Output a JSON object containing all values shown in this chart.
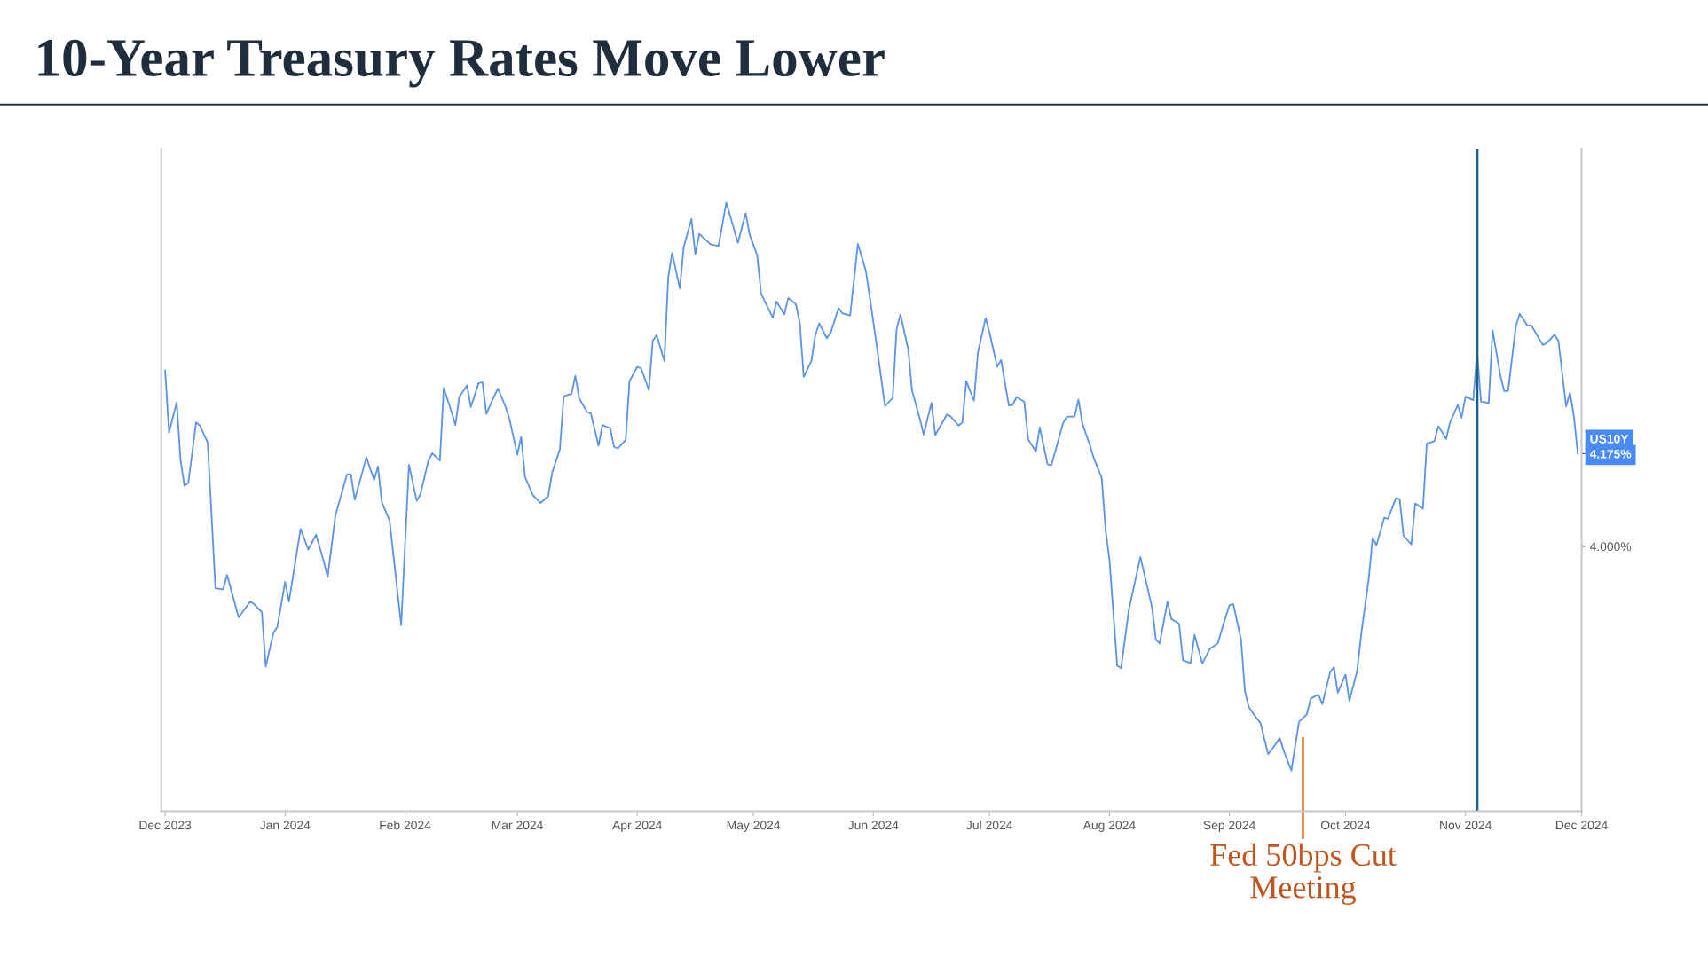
{
  "chart_data": {
    "type": "line",
    "title": "10-Year Treasury Rates Move Lower",
    "x": [
      "2023-12-01",
      "2023-12-02",
      "2023-12-04",
      "2023-12-05",
      "2023-12-06",
      "2023-12-07",
      "2023-12-09",
      "2023-12-10",
      "2023-12-12",
      "2023-12-14",
      "2023-12-16",
      "2023-12-17",
      "2023-12-20",
      "2023-12-23",
      "2023-12-24",
      "2023-12-26",
      "2023-12-27",
      "2023-12-29",
      "2023-12-30",
      "2024-01-01",
      "2024-01-02",
      "2024-01-05",
      "2024-01-07",
      "2024-01-09",
      "2024-01-11",
      "2024-01-12",
      "2024-01-14",
      "2024-01-17",
      "2024-01-18",
      "2024-01-19",
      "2024-01-22",
      "2024-01-24",
      "2024-01-25",
      "2024-01-26",
      "2024-01-28",
      "2024-01-31",
      "2024-02-02",
      "2024-02-04",
      "2024-02-05",
      "2024-02-07",
      "2024-02-08",
      "2024-02-10",
      "2024-02-11",
      "2024-02-13",
      "2024-02-14",
      "2024-02-15",
      "2024-02-17",
      "2024-02-18",
      "2024-02-20",
      "2024-02-21",
      "2024-02-22",
      "2024-02-24",
      "2024-02-25",
      "2024-02-27",
      "2024-02-28",
      "2024-03-01",
      "2024-03-02",
      "2024-03-03",
      "2024-03-05",
      "2024-03-07",
      "2024-03-09",
      "2024-03-10",
      "2024-03-12",
      "2024-03-13",
      "2024-03-15",
      "2024-03-16",
      "2024-03-17",
      "2024-03-19",
      "2024-03-20",
      "2024-03-22",
      "2024-03-23",
      "2024-03-25",
      "2024-03-26",
      "2024-03-27",
      "2024-03-29",
      "2024-03-30",
      "2024-04-01",
      "2024-04-02",
      "2024-04-04",
      "2024-04-05",
      "2024-04-06",
      "2024-04-08",
      "2024-04-09",
      "2024-04-10",
      "2024-04-12",
      "2024-04-13",
      "2024-04-15",
      "2024-04-16",
      "2024-04-17",
      "2024-04-20",
      "2024-04-22",
      "2024-04-24",
      "2024-04-27",
      "2024-04-29",
      "2024-04-30",
      "2024-05-02",
      "2024-05-03",
      "2024-05-04",
      "2024-05-06",
      "2024-05-07",
      "2024-05-09",
      "2024-05-10",
      "2024-05-12",
      "2024-05-13",
      "2024-05-14",
      "2024-05-16",
      "2024-05-17",
      "2024-05-18",
      "2024-05-20",
      "2024-05-21",
      "2024-05-23",
      "2024-05-24",
      "2024-05-26",
      "2024-05-28",
      "2024-05-30",
      "2024-05-31",
      "2024-06-02",
      "2024-06-04",
      "2024-06-06",
      "2024-06-07",
      "2024-06-08",
      "2024-06-10",
      "2024-06-11",
      "2024-06-13",
      "2024-06-14",
      "2024-06-16",
      "2024-06-17",
      "2024-06-20",
      "2024-06-21",
      "2024-06-23",
      "2024-06-24",
      "2024-06-25",
      "2024-06-27",
      "2024-06-28",
      "2024-06-30",
      "2024-07-01",
      "2024-07-03",
      "2024-07-04",
      "2024-07-06",
      "2024-07-07",
      "2024-07-08",
      "2024-07-10",
      "2024-07-11",
      "2024-07-13",
      "2024-07-14",
      "2024-07-16",
      "2024-07-17",
      "2024-07-20",
      "2024-07-21",
      "2024-07-23",
      "2024-07-24",
      "2024-07-25",
      "2024-07-27",
      "2024-07-28",
      "2024-07-30",
      "2024-07-31",
      "2024-08-01",
      "2024-08-03",
      "2024-08-04",
      "2024-08-06",
      "2024-08-09",
      "2024-08-12",
      "2024-08-13",
      "2024-08-14",
      "2024-08-16",
      "2024-08-17",
      "2024-08-19",
      "2024-08-20",
      "2024-08-22",
      "2024-08-23",
      "2024-08-25",
      "2024-08-27",
      "2024-08-29",
      "2024-08-30",
      "2024-09-01",
      "2024-09-02",
      "2024-09-04",
      "2024-09-05",
      "2024-09-06",
      "2024-09-08",
      "2024-09-09",
      "2024-09-11",
      "2024-09-12",
      "2024-09-14",
      "2024-09-15",
      "2024-09-17",
      "2024-09-18",
      "2024-09-19",
      "2024-09-21",
      "2024-09-22",
      "2024-09-24",
      "2024-09-25",
      "2024-09-27",
      "2024-09-28",
      "2024-09-29",
      "2024-10-01",
      "2024-10-02",
      "2024-10-04",
      "2024-10-05",
      "2024-10-07",
      "2024-10-08",
      "2024-10-09",
      "2024-10-11",
      "2024-10-12",
      "2024-10-14",
      "2024-10-15",
      "2024-10-16",
      "2024-10-18",
      "2024-10-19",
      "2024-10-21",
      "2024-10-22",
      "2024-10-24",
      "2024-10-25",
      "2024-10-27",
      "2024-10-28",
      "2024-10-30",
      "2024-10-31",
      "2024-11-01",
      "2024-11-03",
      "2024-11-04",
      "2024-11-05",
      "2024-11-07",
      "2024-11-08",
      "2024-11-10",
      "2024-11-11",
      "2024-11-12",
      "2024-11-14",
      "2024-11-15",
      "2024-11-17",
      "2024-11-18",
      "2024-11-21",
      "2024-11-22",
      "2024-11-24",
      "2024-11-25",
      "2024-11-27",
      "2024-11-28",
      "2024-11-29",
      "2024-11-30"
    ],
    "series": [
      {
        "color": "#5b93e8",
        "values": [
          4.332,
          4.215,
          4.272,
          4.162,
          4.114,
          4.12,
          4.234,
          4.228,
          4.196,
          3.921,
          3.919,
          3.946,
          3.866,
          3.896,
          3.891,
          3.876,
          3.773,
          3.837,
          3.848,
          3.933,
          3.896,
          4.033,
          3.994,
          4.022,
          3.971,
          3.942,
          4.058,
          4.136,
          4.136,
          4.088,
          4.168,
          4.125,
          4.151,
          4.083,
          4.049,
          3.851,
          4.154,
          4.086,
          4.099,
          4.161,
          4.176,
          4.162,
          4.299,
          4.254,
          4.229,
          4.282,
          4.304,
          4.263,
          4.308,
          4.31,
          4.25,
          4.283,
          4.298,
          4.263,
          4.24,
          4.173,
          4.207,
          4.131,
          4.097,
          4.082,
          4.095,
          4.139,
          4.183,
          4.283,
          4.288,
          4.322,
          4.279,
          4.254,
          4.251,
          4.19,
          4.229,
          4.223,
          4.188,
          4.185,
          4.201,
          4.312,
          4.339,
          4.336,
          4.295,
          4.388,
          4.399,
          4.35,
          4.508,
          4.554,
          4.487,
          4.565,
          4.618,
          4.551,
          4.59,
          4.57,
          4.567,
          4.649,
          4.573,
          4.629,
          4.59,
          4.549,
          4.477,
          4.462,
          4.432,
          4.462,
          4.438,
          4.469,
          4.457,
          4.421,
          4.32,
          4.35,
          4.399,
          4.421,
          4.393,
          4.404,
          4.45,
          4.44,
          4.436,
          4.571,
          4.522,
          4.474,
          4.372,
          4.265,
          4.28,
          4.41,
          4.438,
          4.372,
          4.294,
          4.241,
          4.211,
          4.271,
          4.21,
          4.249,
          4.245,
          4.228,
          4.234,
          4.312,
          4.275,
          4.365,
          4.431,
          4.404,
          4.339,
          4.352,
          4.266,
          4.267,
          4.282,
          4.273,
          4.202,
          4.179,
          4.225,
          4.155,
          4.153,
          4.232,
          4.245,
          4.245,
          4.277,
          4.232,
          4.19,
          4.166,
          4.129,
          4.031,
          3.975,
          3.775,
          3.77,
          3.88,
          3.98,
          3.885,
          3.824,
          3.817,
          3.896,
          3.863,
          3.854,
          3.785,
          3.78,
          3.833,
          3.779,
          3.807,
          3.817,
          3.842,
          3.889,
          3.891,
          3.824,
          3.727,
          3.697,
          3.676,
          3.667,
          3.608,
          3.617,
          3.638,
          3.615,
          3.577,
          3.624,
          3.669,
          3.683,
          3.713,
          3.72,
          3.702,
          3.762,
          3.772,
          3.724,
          3.758,
          3.708,
          3.765,
          3.831,
          3.939,
          4.016,
          4.002,
          4.054,
          4.052,
          4.091,
          4.089,
          4.02,
          4.004,
          4.081,
          4.071,
          4.194,
          4.199,
          4.227,
          4.203,
          4.234,
          4.267,
          4.243,
          4.283,
          4.276,
          4.368,
          4.273,
          4.271,
          4.408,
          4.323,
          4.293,
          4.293,
          4.415,
          4.439,
          4.417,
          4.417,
          4.38,
          4.384,
          4.4,
          4.388,
          4.264,
          4.29,
          4.246,
          4.175
        ]
      }
    ],
    "xlim": [
      "2023-11-30",
      "2024-12-01"
    ],
    "xticks": [
      {
        "value": "2023-12-01",
        "label": "Dec 2023"
      },
      {
        "value": "2024-01-01",
        "label": "Jan 2024"
      },
      {
        "value": "2024-02-01",
        "label": "Feb 2024"
      },
      {
        "value": "2024-03-01",
        "label": "Mar 2024"
      },
      {
        "value": "2024-04-01",
        "label": "Apr 2024"
      },
      {
        "value": "2024-05-01",
        "label": "May 2024"
      },
      {
        "value": "2024-06-01",
        "label": "Jun 2024"
      },
      {
        "value": "2024-07-01",
        "label": "Jul 2024"
      },
      {
        "value": "2024-08-01",
        "label": "Aug 2024"
      },
      {
        "value": "2024-09-01",
        "label": "Sep 2024"
      },
      {
        "value": "2024-10-01",
        "label": "Oct 2024"
      },
      {
        "value": "2024-11-01",
        "label": "Nov 2024"
      },
      {
        "value": "2024-12-01",
        "label": "Dec 2024"
      }
    ],
    "ylim": [
      3.5,
      4.75
    ],
    "yticks": [
      {
        "value": 4.0,
        "label": "4.000%"
      },
      {
        "value": 4.175,
        "label": "4.175%"
      }
    ],
    "annotations": [
      "US10Y"
    ],
    "ref_lines": [
      {
        "axis": "x",
        "value": "2024-11-04",
        "color": "#1b5f8a"
      },
      {
        "axis": "x",
        "value": "2024-09-20",
        "color": "#e07b39",
        "label": "Fed 50bps Cut\nMeeting"
      }
    ]
  }
}
